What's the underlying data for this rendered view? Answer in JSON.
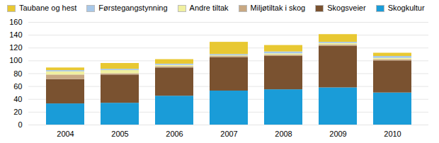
{
  "chart_data": {
    "type": "bar",
    "stacked": true,
    "grid": true,
    "legend": "upper left",
    "categories": [
      "2004",
      "2005",
      "2006",
      "2007",
      "2008",
      "2009",
      "2010"
    ],
    "series": [
      {
        "name": "Skogkultur",
        "color": "#1a9cd8",
        "values": [
          33,
          34,
          45,
          53,
          55,
          58,
          50
        ]
      },
      {
        "name": "Skogsveier",
        "color": "#7a5230",
        "values": [
          38,
          44,
          44,
          52,
          52,
          65,
          50
        ]
      },
      {
        "name": "Miljøtiltak i skog",
        "color": "#c8a882",
        "values": [
          7,
          2,
          2,
          2,
          2,
          2,
          2
        ]
      },
      {
        "name": "Andre tiltak",
        "color": "#f0f0a0",
        "values": [
          5,
          5,
          2,
          1,
          2,
          2,
          2
        ]
      },
      {
        "name": "Førstegangstynning",
        "color": "#a8c8e8",
        "values": [
          2,
          2,
          2,
          2,
          3,
          2,
          3
        ]
      },
      {
        "name": "Taubane og hest",
        "color": "#e8c832",
        "values": [
          4,
          9,
          7,
          19,
          10,
          12,
          5
        ]
      }
    ],
    "ylim": [
      0,
      160
    ],
    "yticks": [
      0,
      20,
      40,
      60,
      80,
      100,
      120,
      140,
      160
    ]
  }
}
